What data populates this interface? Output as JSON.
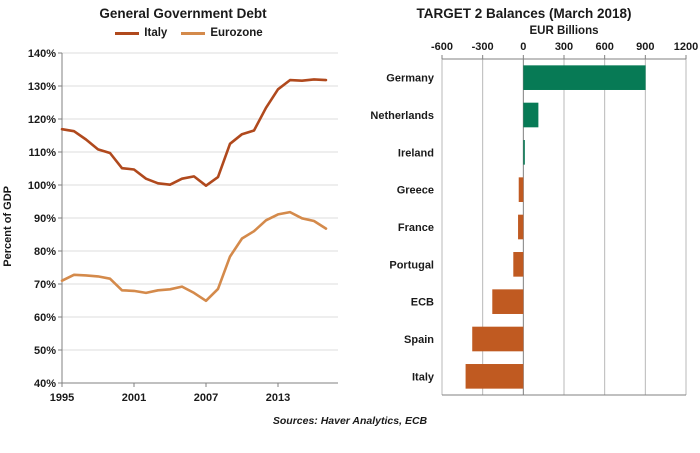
{
  "footer": {
    "sources": "Sources: Haver Analytics, ECB"
  },
  "chart_data": [
    {
      "type": "line",
      "title": "General Government Debt",
      "ylabel": "Percent of GDP",
      "x": [
        1995,
        1996,
        1997,
        1998,
        1999,
        2000,
        2001,
        2002,
        2003,
        2004,
        2005,
        2006,
        2007,
        2008,
        2009,
        2010,
        2011,
        2012,
        2013,
        2014,
        2015,
        2016,
        2017
      ],
      "xlim": [
        1995,
        2018
      ],
      "series": [
        {
          "name": "Italy",
          "color": "#b0491d",
          "values": [
            116.9,
            116.3,
            113.8,
            110.8,
            109.7,
            105.1,
            104.7,
            101.9,
            100.5,
            100.1,
            101.9,
            102.6,
            99.8,
            102.4,
            112.5,
            115.4,
            116.5,
            123.4,
            129.0,
            131.8,
            131.6,
            132.0,
            131.8
          ]
        },
        {
          "name": "Eurozone",
          "color": "#d48a4b",
          "values": [
            71.0,
            72.8,
            72.6,
            72.3,
            71.6,
            68.1,
            67.9,
            67.3,
            68.1,
            68.4,
            69.2,
            67.3,
            64.9,
            68.5,
            78.3,
            83.8,
            86.0,
            89.3,
            91.1,
            91.8,
            89.9,
            89.1,
            86.8
          ]
        }
      ],
      "ylim": [
        40,
        140
      ],
      "yticks": [
        40,
        50,
        60,
        70,
        80,
        90,
        100,
        110,
        120,
        130,
        140
      ],
      "ytick_suffix": "%",
      "xticks": [
        1995,
        2001,
        2007,
        2013
      ],
      "grid": "horizontal",
      "legend_position": "top"
    },
    {
      "type": "bar",
      "orientation": "horizontal",
      "title": "TARGET 2 Balances (March 2018)",
      "axis_label": "EUR Billions",
      "categories": [
        "Germany",
        "Netherlands",
        "Ireland",
        "Greece",
        "France",
        "Portugal",
        "ECB",
        "Spain",
        "Italy"
      ],
      "values": [
        902,
        111,
        6,
        -34,
        -39,
        -74,
        -229,
        -377,
        -426
      ],
      "xlim": [
        -600,
        1200
      ],
      "xticks": [
        -600,
        -300,
        0,
        300,
        600,
        900,
        1200
      ],
      "positive_color": "#077a55",
      "negative_color": "#c05a21",
      "grid": "vertical",
      "legend_position": "none"
    }
  ]
}
